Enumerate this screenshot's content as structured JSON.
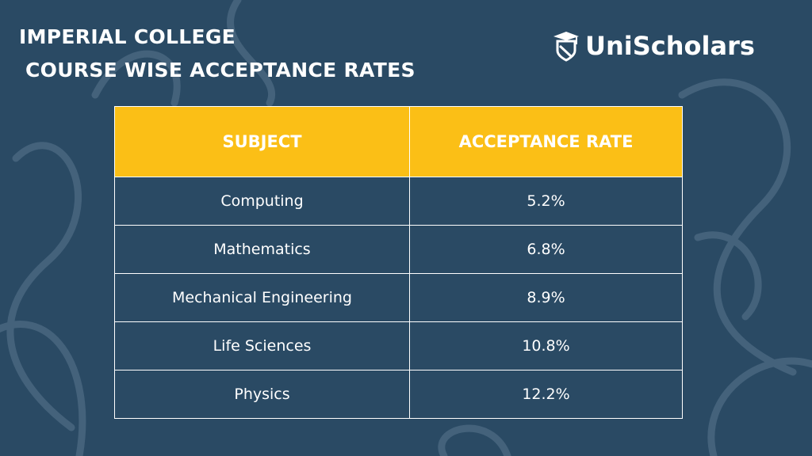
{
  "title_line1": "IMPERIAL COLLEGE",
  "title_line2": "COURSE WISE ACCEPTANCE RATES",
  "logo": {
    "text": "UniScholars",
    "icon": "graduation-cap-shield-icon"
  },
  "colors": {
    "background": "#2a4a64",
    "header": "#fbbf16",
    "text": "#ffffff"
  },
  "chart_data": {
    "type": "table",
    "columns": [
      "SUBJECT",
      "ACCEPTANCE RATE"
    ],
    "rows": [
      [
        "Computing",
        "5.2%"
      ],
      [
        "Mathematics",
        "6.8%"
      ],
      [
        "Mechanical Engineering",
        "8.9%"
      ],
      [
        "Life Sciences",
        "10.8%"
      ],
      [
        "Physics",
        "12.2%"
      ]
    ]
  }
}
